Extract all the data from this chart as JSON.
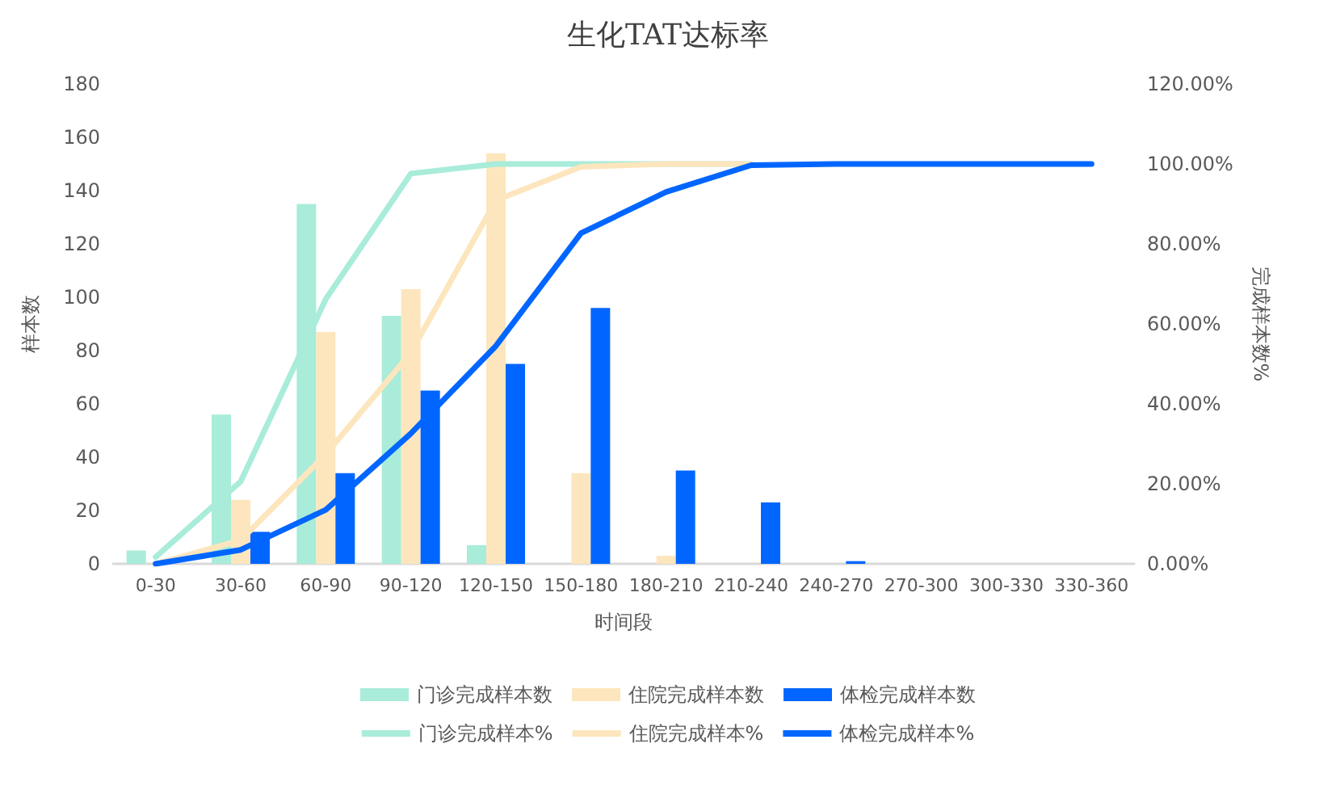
{
  "chart_data": {
    "type": "bar",
    "title": "生化TAT达标率",
    "xlabel": "时间段",
    "ylabel": "样本数",
    "y2label": "完成样本数%",
    "categories": [
      "0-30",
      "30-60",
      "60-90",
      "90-120",
      "120-150",
      "150-180",
      "180-210",
      "210-240",
      "240-270",
      "270-300",
      "300-330",
      "330-360"
    ],
    "series": [
      {
        "name": "门诊完成样本数",
        "color": "#a8ecd9",
        "values": [
          5,
          56,
          135,
          93,
          7,
          0,
          0,
          0,
          0,
          0,
          0,
          0
        ]
      },
      {
        "name": "住院完成样本数",
        "color": "#fde6bd",
        "values": [
          0,
          24,
          87,
          103,
          154,
          34,
          3,
          0,
          0,
          0,
          0,
          0
        ]
      },
      {
        "name": "体检完成样本数",
        "color": "#0066ff",
        "values": [
          0,
          12,
          34,
          65,
          75,
          96,
          35,
          23,
          1,
          0,
          0,
          0
        ]
      },
      {
        "name": "门诊完成样本%",
        "type": "line",
        "axis": "y2",
        "color": "#a8ecd9",
        "values": [
          1.7,
          20.6,
          66.2,
          97.6,
          100,
          100,
          100,
          100,
          null,
          null,
          null,
          null
        ]
      },
      {
        "name": "住院完成样本%",
        "type": "line",
        "axis": "y2",
        "color": "#fde6bd",
        "values": [
          0,
          5.9,
          27.4,
          52.8,
          90.9,
          99.3,
          100,
          100,
          null,
          null,
          null,
          null
        ]
      },
      {
        "name": "体检完成样本%",
        "type": "line",
        "axis": "y2",
        "color": "#0066ff",
        "values": [
          0,
          3.5,
          13.5,
          32.6,
          54.5,
          82.7,
          93,
          99.7,
          100,
          100,
          100,
          100
        ]
      }
    ],
    "ylim": [
      0,
      180
    ],
    "yticks": [
      0,
      20,
      40,
      60,
      80,
      100,
      120,
      140,
      160,
      180
    ],
    "y2lim": [
      0,
      120
    ],
    "y2ticks": [
      {
        "value": 0,
        "label": "0.00%"
      },
      {
        "value": 20,
        "label": "20.00%"
      },
      {
        "value": 40,
        "label": "40.00%"
      },
      {
        "value": 60,
        "label": "60.00%"
      },
      {
        "value": 80,
        "label": "80.00%"
      },
      {
        "value": 100,
        "label": "100.00%"
      },
      {
        "value": 120,
        "label": "120.00%"
      }
    ],
    "grid": false,
    "legend": "bottom",
    "marker": "none",
    "line_style": "solid"
  }
}
